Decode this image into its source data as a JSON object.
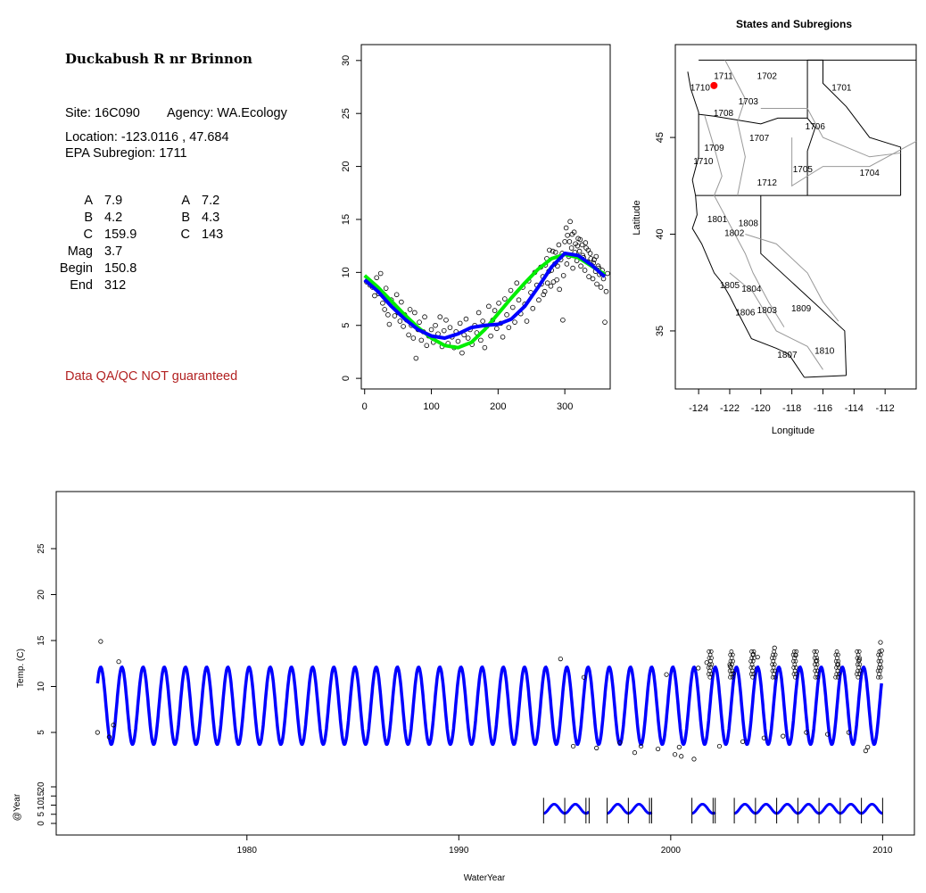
{
  "site": {
    "name": "Duckabush R nr Brinnon",
    "site_label": "Site: 16C090",
    "agency_label": "Agency: WA.Ecology",
    "location_label": "Location: -123.0116 , 47.684",
    "subregion_label": "EPA Subregion: 1711",
    "qa_note": "Data QA/QC NOT guaranteed"
  },
  "params_left": [
    {
      "name": "A",
      "value": "7.9"
    },
    {
      "name": "B",
      "value": "4.2"
    },
    {
      "name": "C",
      "value": "159.9"
    },
    {
      "name": "Mag",
      "value": "3.7"
    },
    {
      "name": "Begin",
      "value": "150.8"
    },
    {
      "name": "End",
      "value": "312"
    }
  ],
  "params_right": [
    {
      "name": "A",
      "value": "7.2"
    },
    {
      "name": "B",
      "value": "4.3"
    },
    {
      "name": "C",
      "value": "143"
    }
  ],
  "map": {
    "title": "States and Subregions",
    "xlabel": "Longitude",
    "ylabel": "Latitude",
    "xticks": [
      "-124",
      "-122",
      "-120",
      "-118",
      "-116",
      "-114",
      "-112"
    ],
    "yticks": [
      "35",
      "40",
      "45"
    ],
    "site_color": "#ff0000",
    "regions": [
      {
        "label": "1702",
        "lon": -119.6,
        "lat": 48.2
      },
      {
        "label": "1701",
        "lon": -114.8,
        "lat": 47.6
      },
      {
        "label": "1711",
        "lon": -122.4,
        "lat": 48.2
      },
      {
        "label": "1710",
        "lon": -123.9,
        "lat": 47.6
      },
      {
        "label": "1703",
        "lon": -120.8,
        "lat": 46.9
      },
      {
        "label": "1708",
        "lon": -122.4,
        "lat": 46.3
      },
      {
        "label": "1706",
        "lon": -116.5,
        "lat": 45.6
      },
      {
        "label": "1707",
        "lon": -120.1,
        "lat": 45.0
      },
      {
        "label": "1709",
        "lon": -123.0,
        "lat": 44.5
      },
      {
        "label": "1710",
        "lon": -123.7,
        "lat": 43.8
      },
      {
        "label": "1705",
        "lon": -117.3,
        "lat": 43.4
      },
      {
        "label": "1704",
        "lon": -113.0,
        "lat": 43.2
      },
      {
        "label": "1712",
        "lon": -119.6,
        "lat": 42.7
      },
      {
        "label": "1801",
        "lon": -122.8,
        "lat": 40.8
      },
      {
        "label": "1808",
        "lon": -120.8,
        "lat": 40.6
      },
      {
        "label": "1802",
        "lon": -121.7,
        "lat": 40.1
      },
      {
        "label": "1805",
        "lon": -122.0,
        "lat": 37.4
      },
      {
        "label": "1804",
        "lon": -120.6,
        "lat": 37.2
      },
      {
        "label": "1806",
        "lon": -121.0,
        "lat": 36.0
      },
      {
        "label": "1803",
        "lon": -119.6,
        "lat": 36.1
      },
      {
        "label": "1809",
        "lon": -117.4,
        "lat": 36.2
      },
      {
        "label": "1807",
        "lon": -118.3,
        "lat": 33.8
      },
      {
        "label": "1810",
        "lon": -115.9,
        "lat": 34.0
      }
    ],
    "site": {
      "lon": -123.0116,
      "lat": 47.684
    }
  },
  "chart_data": [
    {
      "type": "scatter",
      "title": "",
      "xlabel": "",
      "ylabel": "",
      "xlim": [
        -5,
        368
      ],
      "ylim": [
        -1,
        31.5
      ],
      "xticks": [
        "0",
        "100",
        "200",
        "300"
      ],
      "yticks": [
        "0",
        "5",
        "10",
        "15",
        "20",
        "25",
        "30"
      ],
      "series": [
        {
          "color": "#00ee00",
          "x": [
            0,
            20,
            40,
            60,
            80,
            100,
            120,
            140,
            160,
            180,
            200,
            220,
            240,
            260,
            280,
            300,
            320,
            340,
            360
          ],
          "y": [
            9.7,
            8.6,
            7.3,
            6.0,
            4.8,
            3.8,
            3.1,
            2.9,
            3.4,
            4.6,
            6.1,
            7.6,
            9.0,
            10.3,
            11.3,
            11.7,
            11.4,
            10.6,
            9.8
          ]
        },
        {
          "color": "#0000ff",
          "x": [
            0,
            20,
            40,
            60,
            80,
            100,
            120,
            140,
            160,
            180,
            200,
            220,
            240,
            260,
            280,
            300,
            320,
            340,
            360
          ],
          "y": [
            9.3,
            8.2,
            6.8,
            5.6,
            4.6,
            4.0,
            3.8,
            4.2,
            4.8,
            5.0,
            5.1,
            5.6,
            6.8,
            8.6,
            10.5,
            11.8,
            11.6,
            10.7,
            9.6
          ]
        }
      ],
      "points": [
        [
          3,
          9.1
        ],
        [
          8,
          8.8
        ],
        [
          12,
          8.6
        ],
        [
          15,
          7.8
        ],
        [
          18,
          9.5
        ],
        [
          21,
          8.0
        ],
        [
          24,
          9.9
        ],
        [
          27,
          7.1
        ],
        [
          30,
          6.5
        ],
        [
          32,
          8.5
        ],
        [
          35,
          6.0
        ],
        [
          37,
          5.1
        ],
        [
          40,
          7.4
        ],
        [
          42,
          6.8
        ],
        [
          45,
          5.9
        ],
        [
          48,
          7.9
        ],
        [
          50,
          6.2
        ],
        [
          53,
          5.4
        ],
        [
          55,
          7.2
        ],
        [
          58,
          4.9
        ],
        [
          60,
          6.0
        ],
        [
          63,
          5.5
        ],
        [
          66,
          4.1
        ],
        [
          68,
          6.5
        ],
        [
          70,
          5.0
        ],
        [
          73,
          3.8
        ],
        [
          75,
          6.2
        ],
        [
          77,
          1.9
        ],
        [
          80,
          4.6
        ],
        [
          82,
          5.3
        ],
        [
          85,
          3.6
        ],
        [
          88,
          4.4
        ],
        [
          90,
          5.8
        ],
        [
          93,
          3.1
        ],
        [
          96,
          4.0
        ],
        [
          100,
          4.6
        ],
        [
          103,
          3.4
        ],
        [
          106,
          5.0
        ],
        [
          110,
          4.2
        ],
        [
          113,
          5.8
        ],
        [
          116,
          3.0
        ],
        [
          119,
          4.5
        ],
        [
          122,
          5.5
        ],
        [
          125,
          3.3
        ],
        [
          128,
          4.8
        ],
        [
          131,
          3.9
        ],
        [
          134,
          2.9
        ],
        [
          137,
          4.4
        ],
        [
          140,
          3.5
        ],
        [
          143,
          5.2
        ],
        [
          146,
          2.4
        ],
        [
          149,
          4.1
        ],
        [
          152,
          5.6
        ],
        [
          155,
          3.8
        ],
        [
          158,
          4.6
        ],
        [
          161,
          3.2
        ],
        [
          165,
          5.0
        ],
        [
          168,
          4.3
        ],
        [
          171,
          6.2
        ],
        [
          174,
          3.6
        ],
        [
          177,
          5.4
        ],
        [
          180,
          2.9
        ],
        [
          183,
          4.9
        ],
        [
          186,
          6.8
        ],
        [
          189,
          4.0
        ],
        [
          192,
          5.5
        ],
        [
          195,
          6.4
        ],
        [
          198,
          4.7
        ],
        [
          201,
          7.1
        ],
        [
          204,
          5.2
        ],
        [
          207,
          3.9
        ],
        [
          210,
          7.5
        ],
        [
          213,
          6.0
        ],
        [
          216,
          4.8
        ],
        [
          219,
          8.3
        ],
        [
          222,
          6.7
        ],
        [
          225,
          5.3
        ],
        [
          228,
          9.0
        ],
        [
          231,
          7.4
        ],
        [
          234,
          6.1
        ],
        [
          237,
          8.6
        ],
        [
          240,
          7.0
        ],
        [
          243,
          5.4
        ],
        [
          246,
          9.2
        ],
        [
          249,
          8.1
        ],
        [
          252,
          6.6
        ],
        [
          255,
          10.0
        ],
        [
          258,
          8.8
        ],
        [
          261,
          7.4
        ],
        [
          264,
          10.5
        ],
        [
          267,
          9.6
        ],
        [
          270,
          8.2
        ],
        [
          273,
          11.3
        ],
        [
          276,
          10.1
        ],
        [
          279,
          8.7
        ],
        [
          282,
          12.0
        ],
        [
          285,
          10.8
        ],
        [
          288,
          9.3
        ],
        [
          291,
          12.6
        ],
        [
          294,
          11.2
        ],
        [
          297,
          5.5
        ],
        [
          300,
          12.9
        ],
        [
          302,
          14.2
        ],
        [
          304,
          13.5
        ],
        [
          306,
          11.5
        ],
        [
          308,
          14.8
        ],
        [
          310,
          12.3
        ],
        [
          312,
          10.4
        ],
        [
          314,
          13.8
        ],
        [
          316,
          12.7
        ],
        [
          318,
          11.1
        ],
        [
          320,
          13.2
        ],
        [
          322,
          12.0
        ],
        [
          324,
          10.6
        ],
        [
          326,
          12.6
        ],
        [
          328,
          11.4
        ],
        [
          330,
          10.2
        ],
        [
          332,
          12.3
        ],
        [
          334,
          11.0
        ],
        [
          336,
          9.6
        ],
        [
          338,
          11.8
        ],
        [
          340,
          10.7
        ],
        [
          342,
          9.4
        ],
        [
          344,
          11.2
        ],
        [
          346,
          10.1
        ],
        [
          348,
          8.9
        ],
        [
          350,
          10.6
        ],
        [
          352,
          9.8
        ],
        [
          354,
          8.6
        ],
        [
          356,
          10.2
        ],
        [
          358,
          9.4
        ],
        [
          360,
          5.3
        ],
        [
          362,
          8.2
        ],
        [
          364,
          9.9
        ],
        [
          296,
          11.8
        ],
        [
          298,
          9.7
        ],
        [
          303,
          10.8
        ],
        [
          307,
          12.9
        ],
        [
          311,
          13.6
        ],
        [
          315,
          11.9
        ],
        [
          319,
          12.5
        ],
        [
          323,
          13.1
        ],
        [
          327,
          11.6
        ],
        [
          331,
          12.8
        ],
        [
          335,
          12.1
        ],
        [
          339,
          11.3
        ],
        [
          343,
          10.9
        ],
        [
          347,
          11.5
        ],
        [
          351,
          10.4
        ],
        [
          355,
          9.9
        ],
        [
          292,
          8.4
        ],
        [
          289,
          10.6
        ],
        [
          286,
          11.9
        ],
        [
          283,
          9.1
        ],
        [
          280,
          10.2
        ],
        [
          277,
          12.1
        ],
        [
          274,
          9.0
        ],
        [
          271,
          10.7
        ],
        [
          268,
          7.9
        ],
        [
          265,
          8.9
        ]
      ]
    },
    {
      "type": "line",
      "title": "",
      "xlabel": "WaterYear",
      "ylabel": "Temp. (C)",
      "xlim": [
        1971.0,
        2011.5
      ],
      "ylim": [
        0,
        30
      ],
      "xticks": [
        "1980",
        "1990",
        "2000",
        "2010"
      ],
      "yticks": [
        "5",
        "10",
        "15",
        "20",
        "25"
      ],
      "series": [
        {
          "color": "#0000ff",
          "x_start": 1972.95,
          "x_end": 2009.95,
          "mean": 7.9,
          "amplitude": 4.2,
          "peak_day": 310
        }
      ],
      "points": [
        [
          1972.95,
          5.0
        ],
        [
          1973.1,
          14.9
        ],
        [
          1973.5,
          4.5
        ],
        [
          1973.7,
          5.8
        ],
        [
          1973.95,
          12.7
        ],
        [
          1994.8,
          13.0
        ],
        [
          1995.4,
          3.5
        ],
        [
          1995.9,
          11.0
        ],
        [
          1996.5,
          3.3
        ],
        [
          1997.6,
          3.9
        ],
        [
          1998.3,
          2.8
        ],
        [
          1998.6,
          3.5
        ],
        [
          1999.4,
          3.2
        ],
        [
          1999.8,
          11.3
        ],
        [
          2000.2,
          2.6
        ],
        [
          2000.4,
          3.4
        ],
        [
          2000.5,
          2.4
        ],
        [
          2001.1,
          2.1
        ],
        [
          2001.3,
          12.0
        ],
        [
          2001.7,
          12.6
        ],
        [
          2002.3,
          3.5
        ],
        [
          2002.8,
          12.2
        ],
        [
          2003.4,
          4.0
        ],
        [
          2003.9,
          13.5
        ],
        [
          2004.4,
          4.4
        ],
        [
          2004.9,
          14.2
        ],
        [
          2005.3,
          4.6
        ],
        [
          2005.9,
          13.4
        ],
        [
          2006.4,
          5.0
        ],
        [
          2006.9,
          12.8
        ],
        [
          2007.4,
          4.8
        ],
        [
          2007.9,
          12.4
        ],
        [
          2008.4,
          5.0
        ],
        [
          2008.9,
          12.9
        ],
        [
          2009.3,
          3.4
        ],
        [
          2009.9,
          14.8
        ],
        [
          2009.95,
          13.9
        ],
        [
          2009.2,
          3.0
        ],
        [
          2002.95,
          11.4
        ],
        [
          2004.1,
          13.2
        ]
      ]
    },
    {
      "type": "line",
      "title": "",
      "xlabel": "",
      "ylabel": "@Year",
      "ylim": [
        -5,
        30
      ],
      "yticks": [
        "0",
        "5",
        "10",
        "15",
        "20"
      ],
      "segments": [
        [
          1994.0,
          1996.15
        ],
        [
          1997.0,
          1999.1
        ],
        [
          2001.0,
          2002.1
        ],
        [
          2003.0,
          2010.0
        ]
      ],
      "series": [
        {
          "color": "#0000ff",
          "mean": 8.0,
          "amplitude": 2.5
        }
      ]
    }
  ]
}
